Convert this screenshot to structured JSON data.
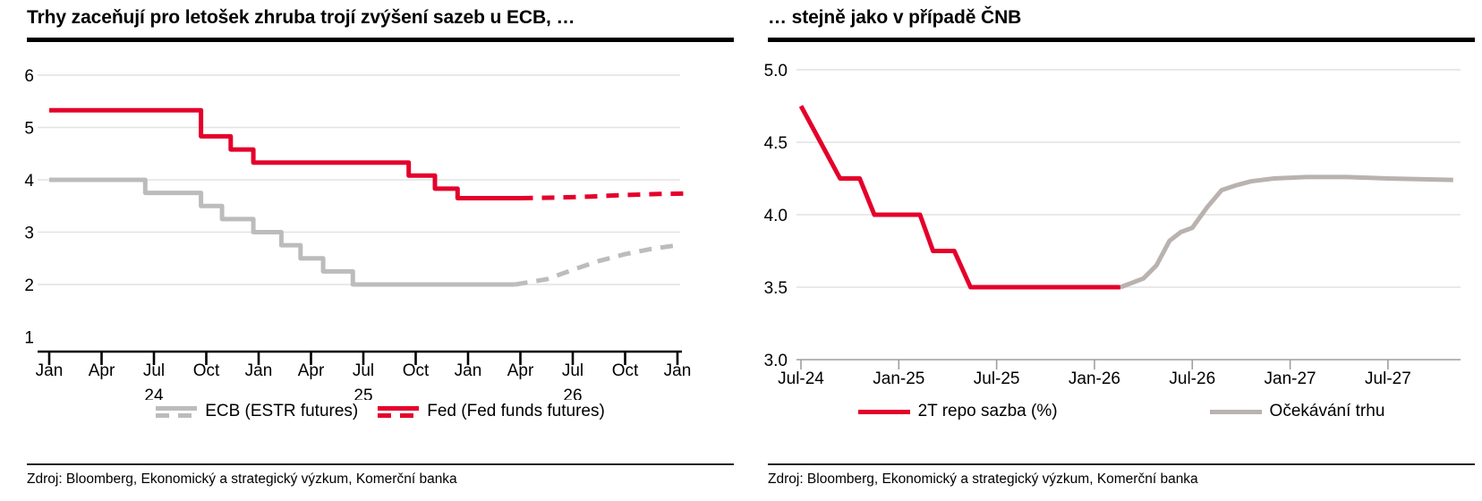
{
  "panels": [
    {
      "source": "Zdroj: Bloomberg, Ekonomický a strategický výzkum, Komerční banka"
    },
    {
      "source": "Zdroj: Bloomberg, Ekonomický a strategický výzkum, Komerční banka"
    }
  ],
  "colors": {
    "red": "#e4002b",
    "gray_left": "#bcbcbc",
    "gray_right": "#b9b2af",
    "grid": "#e2e2e2",
    "axis_dark": "#000000",
    "axis_light": "#9e9e9e"
  },
  "chart_data": [
    {
      "type": "line",
      "title": "Trhy zaceňují pro letošek zhruba trojí zvýšení sazeb u ECB, …",
      "y_unit": "%",
      "ylim": [
        1,
        6
      ],
      "xlim_months": [
        0,
        37
      ],
      "x_epoch": "Jan-2024",
      "grid": "horizontal",
      "legend_position": "bottom",
      "y_ticks": [
        {
          "v": 6,
          "label": "6"
        },
        {
          "v": 5,
          "label": "5"
        },
        {
          "v": 4,
          "label": "4"
        },
        {
          "v": 3,
          "label": "3"
        },
        {
          "v": 2,
          "label": "2"
        },
        {
          "v": 1,
          "label": "1"
        }
      ],
      "x_ticks": [
        {
          "m": 0,
          "label": "Jan"
        },
        {
          "m": 3,
          "label": "Apr"
        },
        {
          "m": 6,
          "label": "Jul",
          "year": "24"
        },
        {
          "m": 9,
          "label": "Oct"
        },
        {
          "m": 12,
          "label": "Jan"
        },
        {
          "m": 15,
          "label": "Apr"
        },
        {
          "m": 18,
          "label": "Jul",
          "year": "25"
        },
        {
          "m": 21,
          "label": "Oct"
        },
        {
          "m": 24,
          "label": "Jan"
        },
        {
          "m": 27,
          "label": "Apr"
        },
        {
          "m": 30,
          "label": "Jul",
          "year": "26"
        },
        {
          "m": 33,
          "label": "Oct"
        },
        {
          "m": 36,
          "label": "Jan"
        }
      ],
      "series": [
        {
          "name": "ECB (ESTR futures)",
          "color": "#bcbcbc",
          "solid_until_m": 26.7,
          "points": [
            [
              0,
              4.0
            ],
            [
              5.5,
              4.0
            ],
            [
              5.5,
              3.75
            ],
            [
              8.7,
              3.75
            ],
            [
              8.7,
              3.5
            ],
            [
              9.9,
              3.5
            ],
            [
              9.9,
              3.25
            ],
            [
              11.7,
              3.25
            ],
            [
              11.7,
              3.0
            ],
            [
              13.3,
              3.0
            ],
            [
              13.3,
              2.75
            ],
            [
              14.4,
              2.75
            ],
            [
              14.4,
              2.5
            ],
            [
              15.7,
              2.5
            ],
            [
              15.7,
              2.25
            ],
            [
              17.4,
              2.25
            ],
            [
              17.4,
              2.0
            ],
            [
              26.7,
              2.0
            ],
            [
              28.5,
              2.1
            ],
            [
              30,
              2.28
            ],
            [
              31.5,
              2.45
            ],
            [
              33,
              2.58
            ],
            [
              34.5,
              2.68
            ],
            [
              36,
              2.75
            ]
          ]
        },
        {
          "name": "Fed (Fed funds futures)",
          "color": "#e4002b",
          "solid_until_m": 27,
          "points": [
            [
              0,
              5.33
            ],
            [
              8.7,
              5.33
            ],
            [
              8.7,
              4.83
            ],
            [
              10.4,
              4.83
            ],
            [
              10.4,
              4.58
            ],
            [
              11.7,
              4.58
            ],
            [
              11.7,
              4.33
            ],
            [
              20.6,
              4.33
            ],
            [
              20.6,
              4.08
            ],
            [
              22.1,
              4.08
            ],
            [
              22.1,
              3.83
            ],
            [
              23.4,
              3.83
            ],
            [
              23.4,
              3.65
            ],
            [
              27,
              3.65
            ],
            [
              29,
              3.66
            ],
            [
              31,
              3.68
            ],
            [
              33,
              3.71
            ],
            [
              35,
              3.73
            ],
            [
              36.8,
              3.74
            ]
          ]
        }
      ]
    },
    {
      "type": "line",
      "title": "… stejně jako v případě ČNB",
      "y_unit": "%",
      "ylim": [
        3.0,
        5.0
      ],
      "xlim_months": [
        0,
        40
      ],
      "x_epoch": "Jul-2024",
      "grid": "horizontal",
      "legend_position": "bottom",
      "y_ticks": [
        {
          "v": 5.0,
          "label": "5.0"
        },
        {
          "v": 4.5,
          "label": "4.5"
        },
        {
          "v": 4.0,
          "label": "4.0"
        },
        {
          "v": 3.5,
          "label": "3.5"
        },
        {
          "v": 3.0,
          "label": "3.0"
        }
      ],
      "x_ticks": [
        {
          "m": 0,
          "label": "Jul-24"
        },
        {
          "m": 6,
          "label": "Jan-25"
        },
        {
          "m": 12,
          "label": "Jul-25"
        },
        {
          "m": 18,
          "label": "Jan-26"
        },
        {
          "m": 24,
          "label": "Jul-26"
        },
        {
          "m": 30,
          "label": "Jan-27"
        },
        {
          "m": 36,
          "label": "Jul-27"
        }
      ],
      "series": [
        {
          "name": "2T repo sazba (%)",
          "color": "#e4002b",
          "solid_until_m": 99,
          "points": [
            [
              0,
              4.75
            ],
            [
              1.2,
              4.5
            ],
            [
              2.4,
              4.25
            ],
            [
              3.6,
              4.25
            ],
            [
              4.5,
              4.0
            ],
            [
              7.3,
              4.0
            ],
            [
              8.1,
              3.75
            ],
            [
              9.4,
              3.75
            ],
            [
              10.4,
              3.5
            ],
            [
              19.6,
              3.5
            ]
          ]
        },
        {
          "name": "Očekávání trhu",
          "color": "#b9b2af",
          "solid_until_m": 99,
          "points": [
            [
              19.6,
              3.5
            ],
            [
              21,
              3.56
            ],
            [
              21.8,
              3.65
            ],
            [
              22.6,
              3.82
            ],
            [
              23.3,
              3.88
            ],
            [
              24,
              3.91
            ],
            [
              24.9,
              4.05
            ],
            [
              25.8,
              4.17
            ],
            [
              26.6,
              4.2
            ],
            [
              27.6,
              4.23
            ],
            [
              29,
              4.25
            ],
            [
              31,
              4.26
            ],
            [
              33.5,
              4.26
            ],
            [
              36,
              4.25
            ],
            [
              40,
              4.24
            ]
          ]
        }
      ]
    }
  ]
}
